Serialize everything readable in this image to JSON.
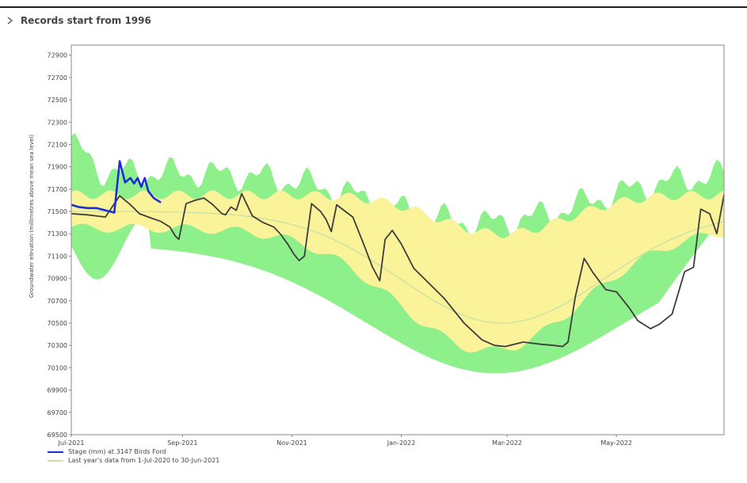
{
  "header": {
    "title": "Records start from 1996",
    "icon": "chevron-right-icon"
  },
  "colors": {
    "outer_band": "#8ef08a",
    "inner_band": "#fbf39a",
    "median": "#c7e1a8",
    "current": "#3d3d3d",
    "stage": "#1a2fd4",
    "frame": "#888888"
  },
  "chart_data": {
    "type": "area",
    "ylabel": "Groundwater elevation (millimetres above mean sea level)",
    "ylim": [
      69500,
      72990
    ],
    "yticks": [
      72900,
      72700,
      72500,
      72300,
      72100,
      71900,
      71700,
      71500,
      71300,
      71100,
      70900,
      70700,
      70500,
      70300,
      70100,
      69900,
      69700,
      69500
    ],
    "xlim": [
      "2021-07-01",
      "2022-06-30"
    ],
    "xticks": [
      {
        "label": "Jul-2021",
        "date": "2021-07-01"
      },
      {
        "label": "Sep-2021",
        "date": "2021-09-01"
      },
      {
        "label": "Nov-2021",
        "date": "2021-11-01"
      },
      {
        "label": "Jan-2022",
        "date": "2022-01-01"
      },
      {
        "label": "Mar-2022",
        "date": "2022-03-01"
      },
      {
        "label": "May-2022",
        "date": "2022-05-01"
      }
    ],
    "grid": false,
    "legend_position": "bottom-left",
    "series": [
      {
        "name": "Stage (mm) at 3147 Birds Ford",
        "style": "line",
        "x": [
          "2021-07-01",
          "2021-07-05",
          "2021-07-10",
          "2021-07-15",
          "2021-07-20",
          "2021-07-25",
          "2021-07-28",
          "2021-07-31",
          "2021-08-03",
          "2021-08-05",
          "2021-08-07",
          "2021-08-09",
          "2021-08-11",
          "2021-08-13",
          "2021-08-16",
          "2021-08-20"
        ],
        "values": [
          71560,
          71540,
          71530,
          71530,
          71510,
          71490,
          71950,
          71760,
          71800,
          71750,
          71800,
          71720,
          71800,
          71680,
          71620,
          71580
        ]
      },
      {
        "name": "Last year's data from  1-Jul-2020 to 30-Jun-2021",
        "style": "line",
        "x": [
          "2021-07-01",
          "2021-07-10",
          "2021-07-20",
          "2021-07-28",
          "2021-08-03",
          "2021-08-08",
          "2021-08-13",
          "2021-08-20",
          "2021-08-25",
          "2021-08-28",
          "2021-08-30",
          "2021-09-03",
          "2021-09-08",
          "2021-09-13",
          "2021-09-18",
          "2021-09-23",
          "2021-09-25",
          "2021-09-28",
          "2021-10-01",
          "2021-10-04",
          "2021-10-10",
          "2021-10-16",
          "2021-10-22",
          "2021-10-26",
          "2021-10-30",
          "2021-11-02",
          "2021-11-05",
          "2021-11-08",
          "2021-11-12",
          "2021-11-17",
          "2021-11-20",
          "2021-11-23",
          "2021-11-26",
          "2021-11-30",
          "2021-12-05",
          "2021-12-10",
          "2021-12-16",
          "2021-12-20",
          "2021-12-23",
          "2021-12-27",
          "2022-01-01",
          "2022-01-08",
          "2022-01-15",
          "2022-01-25",
          "2022-02-05",
          "2022-02-15",
          "2022-02-22",
          "2022-02-28",
          "2022-03-10",
          "2022-03-20",
          "2022-03-27",
          "2022-04-01",
          "2022-04-04",
          "2022-04-08",
          "2022-04-13",
          "2022-04-18",
          "2022-04-25",
          "2022-05-01",
          "2022-05-08",
          "2022-05-13",
          "2022-05-16",
          "2022-05-20",
          "2022-05-25",
          "2022-06-01",
          "2022-06-08",
          "2022-06-13",
          "2022-06-17",
          "2022-06-22",
          "2022-06-26",
          "2022-06-30"
        ],
        "values": [
          71480,
          71470,
          71450,
          71640,
          71560,
          71480,
          71450,
          71410,
          71360,
          71280,
          71250,
          71570,
          71600,
          71620,
          71560,
          71480,
          71470,
          71540,
          71510,
          71660,
          71460,
          71400,
          71360,
          71290,
          71200,
          71120,
          71060,
          71100,
          71570,
          71500,
          71430,
          71320,
          71560,
          71510,
          71450,
          71250,
          71000,
          70880,
          71250,
          71330,
          71210,
          70990,
          70880,
          70720,
          70500,
          70350,
          70300,
          70290,
          70330,
          70310,
          70300,
          70290,
          70330,
          70730,
          71080,
          70950,
          70800,
          70780,
          70640,
          70520,
          70490,
          70450,
          70490,
          70580,
          70960,
          71000,
          71520,
          71480,
          71300,
          71650
        ]
      }
    ]
  },
  "legend": [
    {
      "label": "Stage (mm) at 3147 Birds Ford",
      "color": "#1a2fd4"
    },
    {
      "label": "Last year's data from  1-Jul-2020 to 30-Jun-2021",
      "color": "#c7e1a8"
    }
  ]
}
